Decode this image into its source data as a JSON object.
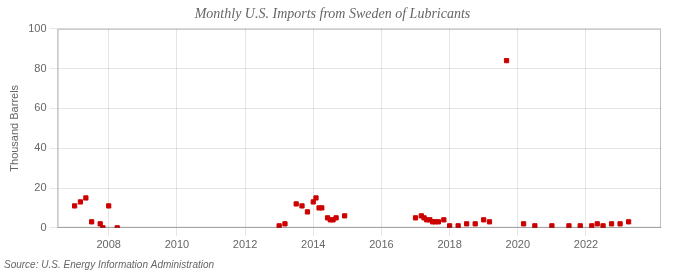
{
  "chart_data": {
    "type": "scatter",
    "title": "Monthly U.S. Imports from Sweden of Lubricants",
    "y_label": "Thousand Barrels",
    "annotations": [
      "Source: U.S. Energy Information Administration"
    ],
    "x": [
      2007.0,
      2007.17,
      2007.33,
      2007.5,
      2007.75,
      2007.83,
      2008.0,
      2008.25,
      2013.0,
      2013.17,
      2013.5,
      2013.67,
      2013.83,
      2014.0,
      2014.08,
      2014.17,
      2014.25,
      2014.42,
      2014.5,
      2014.58,
      2014.67,
      2014.92,
      2017.0,
      2017.17,
      2017.25,
      2017.33,
      2017.42,
      2017.5,
      2017.58,
      2017.67,
      2017.83,
      2018.0,
      2018.25,
      2018.5,
      2018.75,
      2019.0,
      2019.17,
      2019.67,
      2020.17,
      2020.5,
      2021.0,
      2021.5,
      2021.83,
      2022.17,
      2022.33,
      2022.5,
      2022.75,
      2023.0,
      2023.25
    ],
    "values": [
      11,
      13,
      15,
      3,
      2,
      0,
      11,
      0,
      1,
      2,
      12,
      11,
      8,
      13,
      15,
      10,
      10,
      5,
      4,
      4,
      5,
      6,
      5,
      6,
      5,
      4,
      4,
      3,
      3,
      3,
      4,
      1,
      1,
      2,
      2,
      4,
      3,
      84,
      2,
      1,
      1,
      1,
      1,
      1,
      2,
      1,
      2,
      2,
      3
    ],
    "color": "#cc0000",
    "marker": "square",
    "xlim": [
      2006.5,
      2024.2
    ],
    "xticks": [
      2008,
      2010,
      2012,
      2014,
      2016,
      2018,
      2020,
      2022
    ],
    "ylim": [
      0,
      100
    ],
    "yticks": [
      0,
      20,
      40,
      60,
      80,
      100
    ],
    "grid": true
  }
}
